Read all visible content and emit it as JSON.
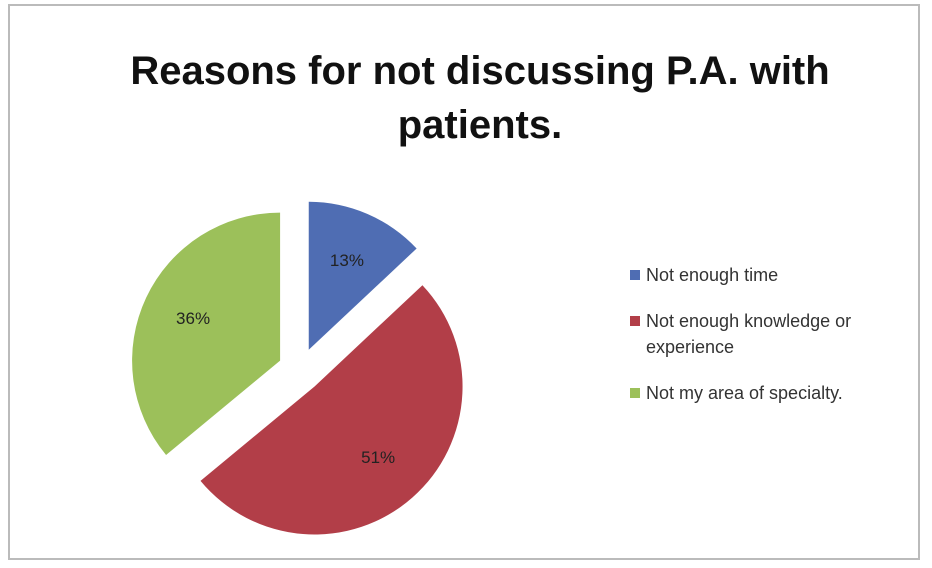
{
  "chart_data": {
    "type": "pie",
    "title": "Reasons for not discussing P.A. with patients.",
    "categories": [
      "Not enough time",
      "Not enough knowledge or experience",
      "Not my area of specialty."
    ],
    "values": [
      13,
      51,
      36
    ],
    "value_labels": [
      "13%",
      "51%",
      "36%"
    ],
    "colors": [
      "#4f6db3",
      "#b23e48",
      "#9cc05a"
    ],
    "legend": "right"
  }
}
